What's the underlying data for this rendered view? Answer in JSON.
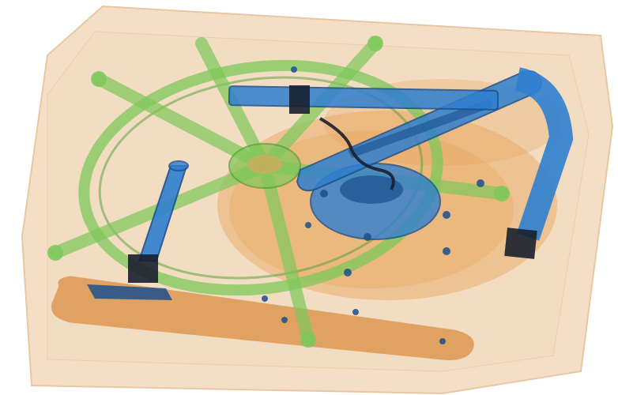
{
  "scene": {
    "description_hidden": "",
    "palette": {
      "background": "#ffffff",
      "box_fill": "#f3dcc0",
      "box_edge": "#e6c29a",
      "organic_orange": "#e7a35a",
      "organic_orange_dark": "#d98a3a",
      "metal_blue": "#2f7fd0",
      "metal_blue_dark": "#1b4f8f",
      "metal_dark": "#1a1f2e",
      "plastic_green": "#7ec85a",
      "plastic_green_dark": "#4e9e34"
    }
  }
}
